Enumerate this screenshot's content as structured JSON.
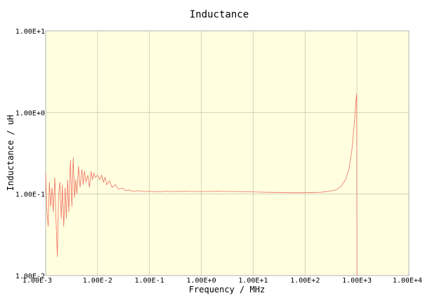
{
  "chart_data": {
    "type": "line",
    "title": "Inductance",
    "xlabel": "Frequency / MHz",
    "ylabel": "Inductance / uH",
    "xscale": "log",
    "yscale": "log",
    "xlim": [
      0.001,
      10000
    ],
    "ylim": [
      0.01,
      10
    ],
    "grid": true,
    "legend": "none",
    "x_ticks": [
      "1.00E-3",
      "1.00E-2",
      "1.00E-1",
      "1.00E+0",
      "1.00E+1",
      "1.00E+2",
      "1.00E+3",
      "1.00E+4"
    ],
    "y_ticks": [
      "1.00E-2",
      "1.00E-1",
      "1.00E+0",
      "1.00E+1"
    ],
    "series": [
      {
        "points": [
          [
            0.001,
            0.18
          ],
          [
            0.00106,
            0.06
          ],
          [
            0.00112,
            0.04
          ],
          [
            0.00118,
            0.14
          ],
          [
            0.00125,
            0.07
          ],
          [
            0.00133,
            0.12
          ],
          [
            0.0014,
            0.06
          ],
          [
            0.0015,
            0.16
          ],
          [
            0.00158,
            0.05
          ],
          [
            0.00168,
            0.017
          ],
          [
            0.00178,
            0.1
          ],
          [
            0.00188,
            0.14
          ],
          [
            0.002,
            0.05
          ],
          [
            0.0021,
            0.13
          ],
          [
            0.00223,
            0.04
          ],
          [
            0.00237,
            0.12
          ],
          [
            0.0025,
            0.05
          ],
          [
            0.00265,
            0.15
          ],
          [
            0.0028,
            0.06
          ],
          [
            0.003,
            0.26
          ],
          [
            0.0032,
            0.07
          ],
          [
            0.0034,
            0.28
          ],
          [
            0.0036,
            0.09
          ],
          [
            0.0038,
            0.15
          ],
          [
            0.004,
            0.1
          ],
          [
            0.0043,
            0.22
          ],
          [
            0.0046,
            0.12
          ],
          [
            0.005,
            0.2
          ],
          [
            0.0053,
            0.13
          ],
          [
            0.0056,
            0.19
          ],
          [
            0.006,
            0.14
          ],
          [
            0.0065,
            0.17
          ],
          [
            0.007,
            0.12
          ],
          [
            0.0075,
            0.19
          ],
          [
            0.008,
            0.15
          ],
          [
            0.0085,
            0.18
          ],
          [
            0.009,
            0.16
          ],
          [
            0.01,
            0.17
          ],
          [
            0.011,
            0.15
          ],
          [
            0.012,
            0.17
          ],
          [
            0.013,
            0.14
          ],
          [
            0.014,
            0.16
          ],
          [
            0.015,
            0.13
          ],
          [
            0.017,
            0.145
          ],
          [
            0.019,
            0.12
          ],
          [
            0.022,
            0.13
          ],
          [
            0.025,
            0.115
          ],
          [
            0.03,
            0.118
          ],
          [
            0.035,
            0.11
          ],
          [
            0.04,
            0.112
          ],
          [
            0.05,
            0.107
          ],
          [
            0.06,
            0.11
          ],
          [
            0.08,
            0.107
          ],
          [
            0.1,
            0.108
          ],
          [
            0.15,
            0.106
          ],
          [
            0.2,
            0.108
          ],
          [
            0.3,
            0.107
          ],
          [
            0.5,
            0.108
          ],
          [
            1,
            0.107
          ],
          [
            2,
            0.108
          ],
          [
            5,
            0.107
          ],
          [
            10,
            0.106
          ],
          [
            20,
            0.105
          ],
          [
            50,
            0.104
          ],
          [
            100,
            0.104
          ],
          [
            200,
            0.105
          ],
          [
            300,
            0.108
          ],
          [
            400,
            0.113
          ],
          [
            500,
            0.125
          ],
          [
            600,
            0.15
          ],
          [
            700,
            0.2
          ],
          [
            800,
            0.35
          ],
          [
            900,
            0.8
          ],
          [
            950,
            1.3
          ],
          [
            990,
            1.7
          ],
          [
            1000,
            0.01
          ]
        ]
      }
    ]
  },
  "colors": {
    "plot_background": "#ffffe0",
    "grid": "#c8c8b4",
    "line": "#f07060",
    "frame": "#808080"
  }
}
